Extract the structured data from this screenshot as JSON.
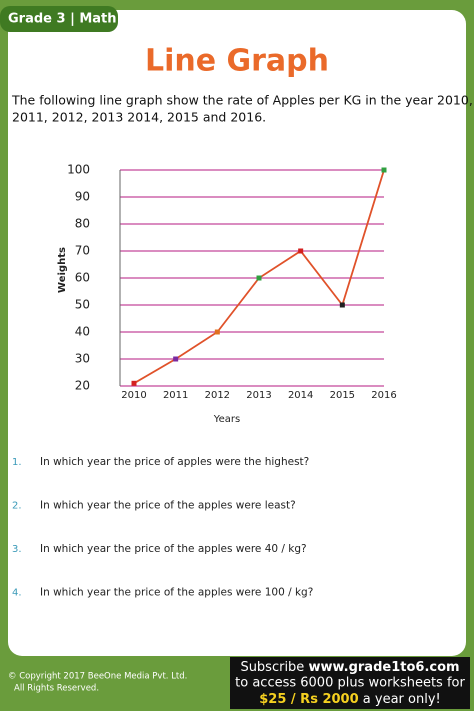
{
  "header": {
    "tab": "Grade 3 | Math",
    "title": "Line Graph",
    "intro": [
      "The following line graph show the rate of Apples per KG in the year 2010,",
      "2011, 2012, 2013 2014, 2015 and 2016."
    ]
  },
  "chart_data": {
    "type": "line",
    "xlabel": "Years",
    "ylabel": "Weights",
    "categories": [
      "2010",
      "2011",
      "2012",
      "2013",
      "2014",
      "2015",
      "2016"
    ],
    "series": [
      {
        "name": "Apples",
        "color": "#e0522a",
        "values": [
          21,
          30,
          40,
          60,
          70,
          50,
          100
        ],
        "marker_colors": [
          "#d42020",
          "#7a2aa0",
          "#e07020",
          "#30a040",
          "#d42020",
          "#202020",
          "#30a040"
        ]
      }
    ],
    "ylim": [
      20,
      100
    ],
    "yticks": [
      20,
      30,
      40,
      50,
      60,
      70,
      80,
      90,
      100
    ],
    "grid": true,
    "grid_color": "#c4479a"
  },
  "questions": [
    {
      "number": "1.",
      "text": "In which year the price of apples were the highest?"
    },
    {
      "number": "2.",
      "text": "In which year the price of the apples were least?"
    },
    {
      "number": "3.",
      "text": "In which year the price of the apples were 40 / kg?"
    },
    {
      "number": "4.",
      "text": "In which year the price of the apples were 100 / kg?"
    }
  ],
  "footer": {
    "copyright": [
      "© Copyright 2017 BeeOne Media Pvt. Ltd.",
      "All Rights Reserved."
    ],
    "promo": {
      "line1": "Subscribe",
      "site": "www.grade1to6.com",
      "line2": "to access 6000 plus worksheets for",
      "price": "$25 / Rs 2000",
      "line3": "a year only!"
    }
  }
}
